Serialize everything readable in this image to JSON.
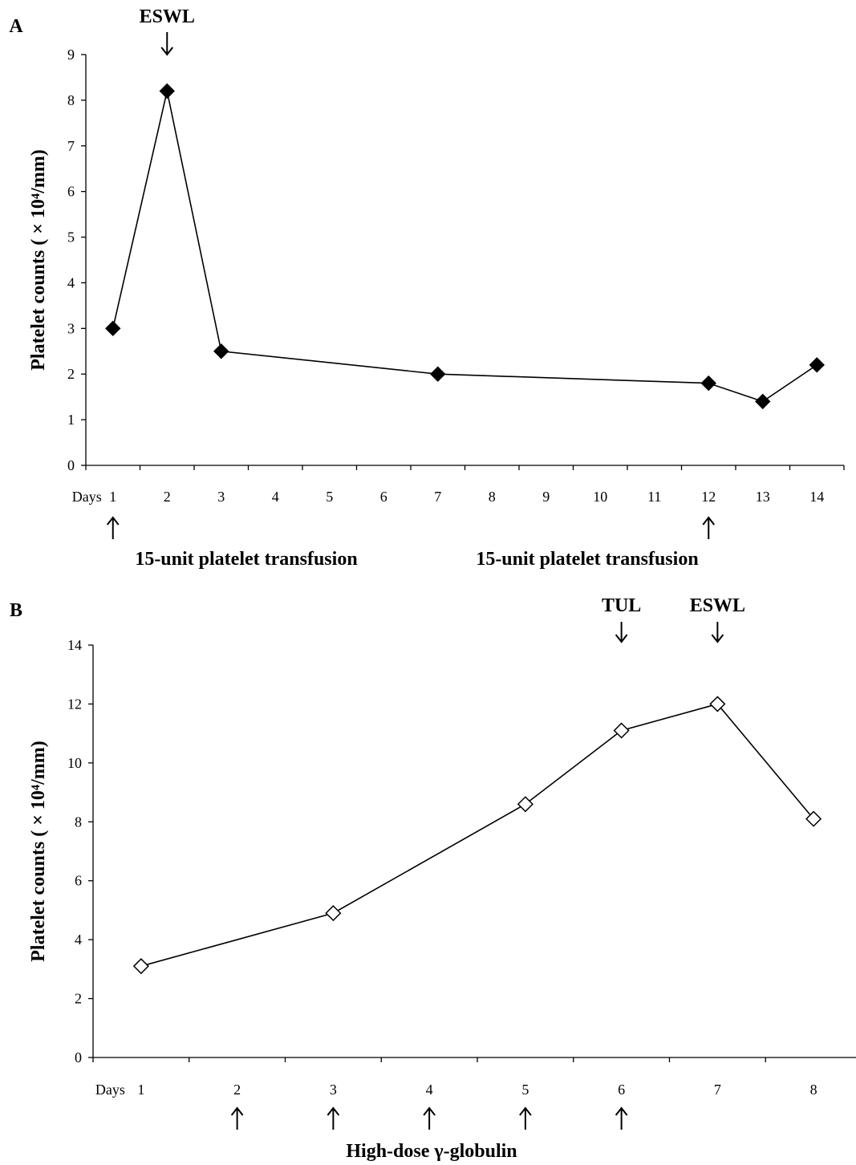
{
  "chart_data": [
    {
      "panel_label": "A",
      "type": "line",
      "ylabel": "Platelet counts ( × 10⁴/mm)",
      "ylim": [
        0,
        9
      ],
      "yticks": [
        0,
        1,
        2,
        3,
        4,
        5,
        6,
        7,
        8,
        9
      ],
      "x_label": "Days",
      "categories": [
        "1",
        "2",
        "3",
        "4",
        "5",
        "6",
        "7",
        "8",
        "9",
        "10",
        "11",
        "12",
        "13",
        "14"
      ],
      "points": [
        {
          "x": "1",
          "y": 3.0
        },
        {
          "x": "2",
          "y": 8.2
        },
        {
          "x": "3",
          "y": 2.5
        },
        {
          "x": "7",
          "y": 2.0
        },
        {
          "x": "12",
          "y": 1.8
        },
        {
          "x": "13",
          "y": 1.4
        },
        {
          "x": "14",
          "y": 2.2
        }
      ],
      "marker": "filled-diamond",
      "color": "#000000",
      "top_events": [
        {
          "label": "ESWL",
          "x": "2"
        }
      ],
      "bottom_events": [
        {
          "label": "15-unit platelet transfusion",
          "x": "1"
        },
        {
          "label": "15-unit platelet transfusion",
          "x": "12"
        }
      ]
    },
    {
      "panel_label": "B",
      "type": "line",
      "ylabel": "Platelet counts ( × 10⁴/mm)",
      "ylim": [
        0,
        14
      ],
      "yticks": [
        0,
        2,
        4,
        6,
        8,
        10,
        12,
        14
      ],
      "x_label": "Days",
      "categories": [
        "1",
        "2",
        "3",
        "4",
        "5",
        "6",
        "7",
        "8"
      ],
      "points": [
        {
          "x": "1",
          "y": 3.1
        },
        {
          "x": "3",
          "y": 4.9
        },
        {
          "x": "5",
          "y": 8.6
        },
        {
          "x": "6",
          "y": 11.1
        },
        {
          "x": "7",
          "y": 12.0
        },
        {
          "x": "8",
          "y": 8.1
        }
      ],
      "marker": "open-diamond",
      "color": "#000000",
      "top_events": [
        {
          "label": "TUL",
          "x": "6"
        },
        {
          "label": "ESWL",
          "x": "7"
        }
      ],
      "bottom_events_label": "High-dose γ-globulin",
      "bottom_event_days": [
        "2",
        "3",
        "4",
        "5",
        "6"
      ]
    }
  ]
}
